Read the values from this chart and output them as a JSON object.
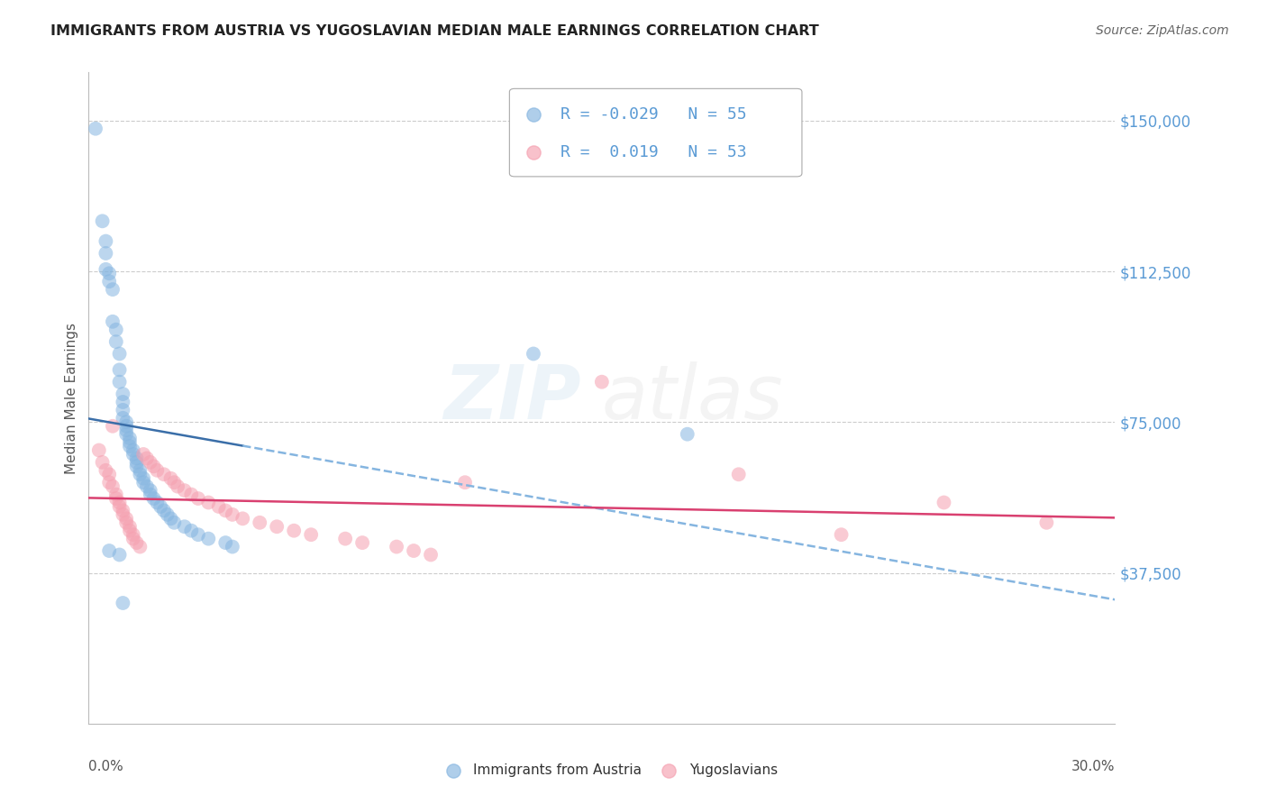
{
  "title": "IMMIGRANTS FROM AUSTRIA VS YUGOSLAVIAN MEDIAN MALE EARNINGS CORRELATION CHART",
  "source": "Source: ZipAtlas.com",
  "ylabel": "Median Male Earnings",
  "watermark_zip": "ZIP",
  "watermark_atlas": "atlas",
  "legend_blue_r": "-0.029",
  "legend_blue_n": "55",
  "legend_pink_r": " 0.019",
  "legend_pink_n": "53",
  "blue_color": "#85B5E0",
  "pink_color": "#F5A0B0",
  "blue_line_color": "#3A6EA8",
  "pink_line_color": "#D94070",
  "dashed_color": "#85B5E0",
  "y_axis_color": "#5B9BD5",
  "title_color": "#222222",
  "axis_label_color": "#555555",
  "xlim": [
    0.0,
    0.3
  ],
  "ylim": [
    0,
    162000
  ],
  "y_ticks": [
    37500,
    75000,
    112500,
    150000
  ],
  "y_tick_labels": [
    "$37,500",
    "$75,000",
    "$112,500",
    "$150,000"
  ],
  "blue_x": [
    0.002,
    0.004,
    0.005,
    0.005,
    0.005,
    0.006,
    0.006,
    0.007,
    0.007,
    0.008,
    0.008,
    0.009,
    0.009,
    0.009,
    0.01,
    0.01,
    0.01,
    0.01,
    0.011,
    0.011,
    0.011,
    0.011,
    0.012,
    0.012,
    0.012,
    0.013,
    0.013,
    0.014,
    0.014,
    0.014,
    0.015,
    0.015,
    0.016,
    0.016,
    0.017,
    0.018,
    0.018,
    0.019,
    0.02,
    0.021,
    0.022,
    0.023,
    0.024,
    0.025,
    0.028,
    0.03,
    0.032,
    0.035,
    0.04,
    0.042,
    0.13,
    0.175,
    0.006,
    0.009,
    0.01
  ],
  "blue_y": [
    148000,
    125000,
    120000,
    117000,
    113000,
    112000,
    110000,
    108000,
    100000,
    98000,
    95000,
    92000,
    88000,
    85000,
    82000,
    80000,
    78000,
    76000,
    75000,
    74000,
    73000,
    72000,
    71000,
    70000,
    69000,
    68000,
    67000,
    66000,
    65000,
    64000,
    63000,
    62000,
    61000,
    60000,
    59000,
    58000,
    57000,
    56000,
    55000,
    54000,
    53000,
    52000,
    51000,
    50000,
    49000,
    48000,
    47000,
    46000,
    45000,
    44000,
    92000,
    72000,
    43000,
    42000,
    30000
  ],
  "pink_x": [
    0.003,
    0.004,
    0.005,
    0.006,
    0.006,
    0.007,
    0.007,
    0.008,
    0.008,
    0.009,
    0.009,
    0.01,
    0.01,
    0.011,
    0.011,
    0.012,
    0.012,
    0.013,
    0.013,
    0.014,
    0.015,
    0.016,
    0.017,
    0.018,
    0.019,
    0.02,
    0.022,
    0.024,
    0.025,
    0.026,
    0.028,
    0.03,
    0.032,
    0.035,
    0.038,
    0.04,
    0.042,
    0.045,
    0.05,
    0.055,
    0.06,
    0.065,
    0.075,
    0.08,
    0.09,
    0.095,
    0.1,
    0.11,
    0.15,
    0.19,
    0.22,
    0.25,
    0.28
  ],
  "pink_y": [
    68000,
    65000,
    63000,
    62000,
    60000,
    59000,
    74000,
    57000,
    56000,
    55000,
    54000,
    53000,
    52000,
    51000,
    50000,
    49000,
    48000,
    47000,
    46000,
    45000,
    44000,
    67000,
    66000,
    65000,
    64000,
    63000,
    62000,
    61000,
    60000,
    59000,
    58000,
    57000,
    56000,
    55000,
    54000,
    53000,
    52000,
    51000,
    50000,
    49000,
    48000,
    47000,
    46000,
    45000,
    44000,
    43000,
    42000,
    60000,
    85000,
    62000,
    47000,
    55000,
    50000
  ]
}
